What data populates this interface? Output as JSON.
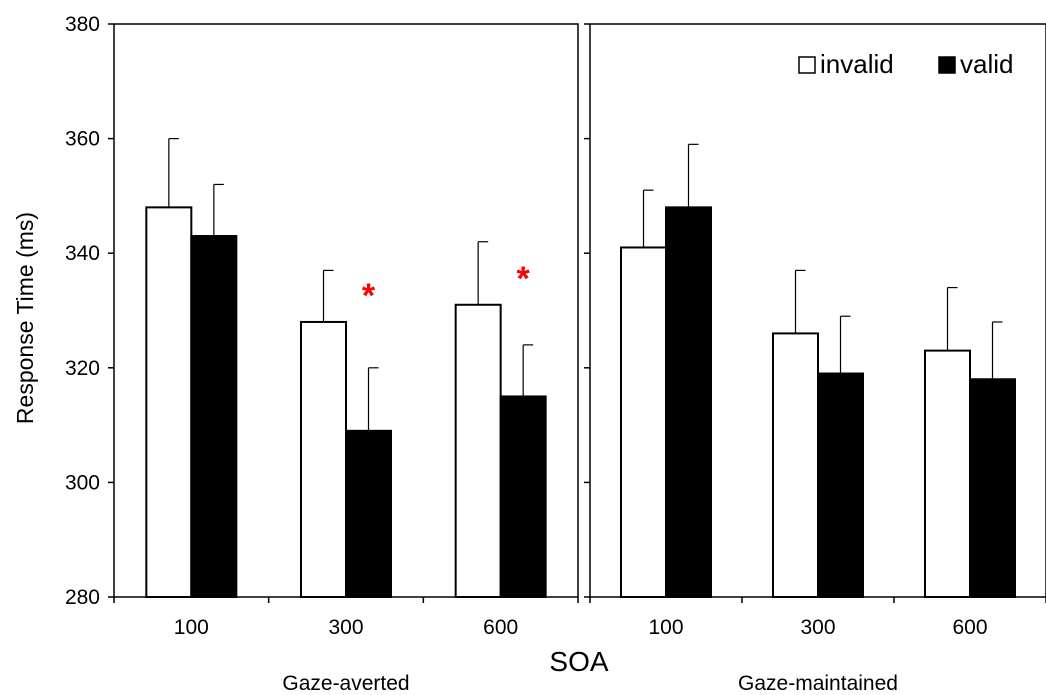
{
  "chart_data": {
    "type": "bar",
    "ylabel": "Response Time (ms)",
    "xlabel": "SOA",
    "ylim": [
      280,
      380
    ],
    "yticks": [
      280,
      300,
      320,
      340,
      360,
      380
    ],
    "grid": false,
    "legend_position": "top-right",
    "series": [
      {
        "name": "invalid",
        "fill": "#ffffff"
      },
      {
        "name": "valid",
        "fill": "#000000"
      }
    ],
    "colors": {
      "significance": "#ff0000",
      "bar_outline": "#000000"
    },
    "panels": [
      {
        "label": "Gaze-averted",
        "categories": [
          "100",
          "300",
          "600"
        ],
        "series": [
          {
            "name": "invalid",
            "values": [
              348,
              328,
              331
            ],
            "error": [
              12,
              9,
              11
            ]
          },
          {
            "name": "valid",
            "values": [
              343,
              309,
              315
            ],
            "error": [
              9,
              11,
              9
            ]
          }
        ],
        "significant": [
          false,
          true,
          true
        ],
        "significance_mark": "*"
      },
      {
        "label": "Gaze-maintained",
        "categories": [
          "100",
          "300",
          "600"
        ],
        "series": [
          {
            "name": "invalid",
            "values": [
              341,
              326,
              323
            ],
            "error": [
              10,
              11,
              11
            ]
          },
          {
            "name": "valid",
            "values": [
              348,
              319,
              318
            ],
            "error": [
              11,
              10,
              10
            ]
          }
        ],
        "significant": [
          false,
          false,
          false
        ],
        "significance_mark": "*"
      }
    ]
  }
}
